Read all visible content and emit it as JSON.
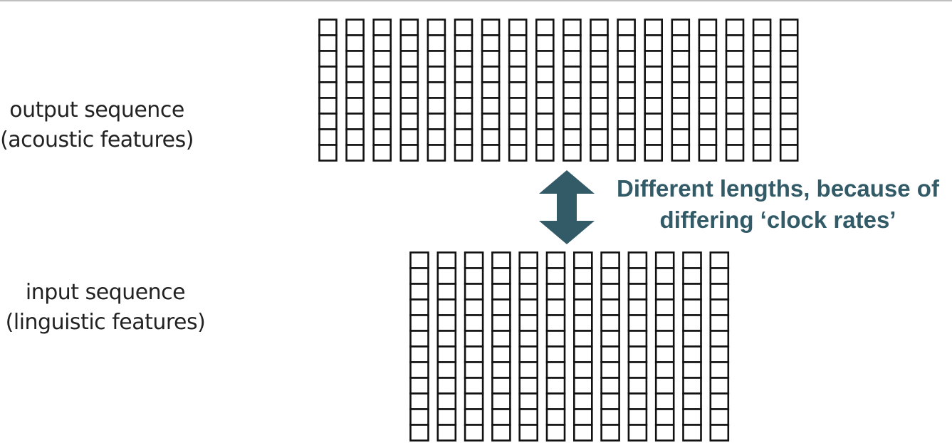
{
  "labels": {
    "output_line1": "output sequence",
    "output_line2": "(acoustic features)",
    "input_line1": "input sequence",
    "input_line2": "(linguistic features)"
  },
  "note": {
    "line1": "Different lengths, because of",
    "line2": "differing ‘clock rates’"
  },
  "output_sequence": {
    "frames": 18,
    "features_per_frame": 9
  },
  "input_sequence": {
    "frames": 12,
    "features_per_frame": 12
  },
  "colors": {
    "note_text": "#325a67",
    "arrow": "#325a67",
    "cell_stroke": "#111111",
    "label_text": "#222222"
  },
  "icons": {
    "arrow": "double-headed-vertical-arrow"
  }
}
